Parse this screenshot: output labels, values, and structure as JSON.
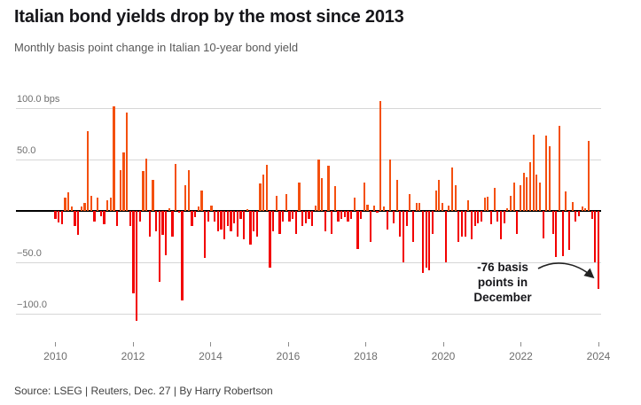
{
  "header": {
    "title": "Italian bond yields drop by the most since 2013",
    "subtitle": "Monthly basis point change in Italian 10-year bond yield"
  },
  "chart_data": {
    "type": "bar",
    "title": "Italian bond yields drop by the most since 2013",
    "subtitle": "Monthly basis point change in Italian 10-year bond yield",
    "unit": "basis points",
    "start_month": "2010-01",
    "end_month": "2023-12",
    "values": [
      -8,
      -11,
      -13,
      13,
      18,
      4,
      -15,
      -23,
      4,
      8,
      78,
      15,
      -10,
      13,
      -5,
      -13,
      10,
      13,
      102,
      -15,
      40,
      57,
      96,
      -15,
      -80,
      -107,
      -10,
      39,
      51,
      -25,
      30,
      -20,
      -69,
      -23,
      -43,
      3,
      -25,
      46,
      -2,
      -87,
      25,
      40,
      -15,
      -6,
      4,
      20,
      -46,
      -10,
      5,
      -10,
      -20,
      -18,
      -28,
      -15,
      -20,
      -12,
      -25,
      -8,
      -28,
      2,
      -33,
      -20,
      -25,
      27,
      35,
      45,
      -55,
      -20,
      15,
      -22,
      -10,
      16,
      -10,
      -8,
      -22,
      28,
      -15,
      -12,
      -8,
      -15,
      5,
      50,
      32,
      -20,
      44,
      -22,
      24,
      -10,
      -8,
      -6,
      -10,
      -8,
      13,
      -37,
      -8,
      28,
      6,
      -30,
      5,
      -2,
      107,
      4,
      -18,
      50,
      -12,
      30,
      -25,
      -50,
      -15,
      16,
      -30,
      8,
      8,
      -60,
      -55,
      -58,
      -22,
      20,
      30,
      8,
      -50,
      5,
      42,
      25,
      -30,
      -25,
      -25,
      10,
      -28,
      -15,
      -12,
      -10,
      13,
      14,
      -13,
      22,
      -10,
      -28,
      -12,
      3,
      15,
      28,
      -22,
      25,
      37,
      33,
      47,
      74,
      35,
      28,
      -27,
      73,
      63,
      -22,
      -45,
      83,
      -44,
      19,
      -38,
      9,
      -10,
      -5,
      4,
      3,
      68,
      -8,
      -50,
      -76
    ],
    "x_tick_labels": [
      "2010",
      "2012",
      "2014",
      "2016",
      "2018",
      "2020",
      "2022",
      "2024"
    ],
    "y_ticks": [
      {
        "value": 100,
        "label": "100.0 bps"
      },
      {
        "value": 50,
        "label": "50.0"
      },
      {
        "value": -50,
        "label": "−50.0"
      },
      {
        "value": -100,
        "label": "−100.0"
      }
    ],
    "ylim": [
      -115,
      110
    ],
    "grid": true,
    "positive_color": "#f4500f",
    "negative_color": "#f20000",
    "annotation": {
      "line1": "-76 basis",
      "line2": "points in",
      "line3": "December",
      "points_to_value": -76,
      "points_to_month": "2023-12"
    }
  },
  "footer": {
    "source": "Source: LSEG | Reuters, Dec. 27 | By Harry Robertson"
  }
}
